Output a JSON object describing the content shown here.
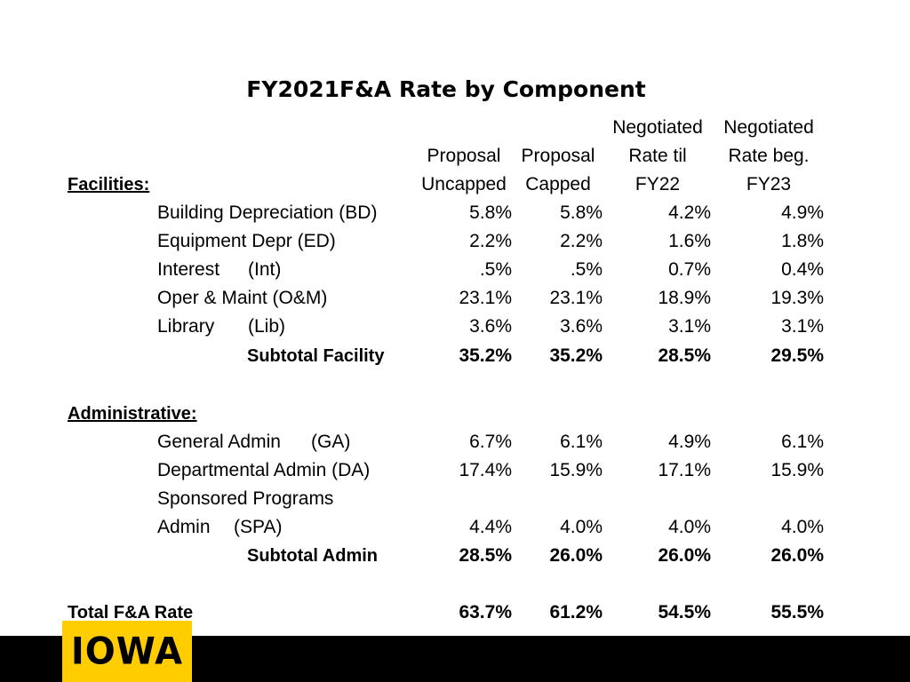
{
  "title": "FY2021F&A Rate by Component",
  "columns": [
    {
      "line1": "",
      "line2": "Proposal",
      "line3": "Uncapped"
    },
    {
      "line1": "",
      "line2": "Proposal",
      "line3": "Capped"
    },
    {
      "line1": "Negotiated",
      "line2": "Rate til",
      "line3": "FY22"
    },
    {
      "line1": "Negotiated",
      "line2": "Rate beg.",
      "line3": "FY23"
    }
  ],
  "facilities": {
    "heading": "Facilities:",
    "rows": [
      {
        "label": "Building Depreciation (BD)",
        "values": [
          "5.8%",
          "5.8%",
          "4.2%",
          "4.9%"
        ]
      },
      {
        "label": "Equipment Depr (ED)",
        "values": [
          "2.2%",
          "2.2%",
          "1.6%",
          "1.8%"
        ]
      },
      {
        "label": "Interest",
        "abbr": "(Int)",
        "values": [
          ".5%",
          ".5%",
          "0.7%",
          "0.4%"
        ]
      },
      {
        "label": "Oper & Maint (O&M)",
        "values": [
          "23.1%",
          "23.1%",
          "18.9%",
          "19.3%"
        ]
      },
      {
        "label": "Library",
        "abbr": "(Lib)",
        "values": [
          "3.6%",
          "3.6%",
          "3.1%",
          "3.1%"
        ]
      }
    ],
    "subtotal": {
      "label": "Subtotal Facility",
      "values": [
        "35.2%",
        "35.2%",
        "28.5%",
        "29.5%"
      ]
    }
  },
  "administrative": {
    "heading": "Administrative:",
    "rows": [
      {
        "label": "General Admin",
        "abbr": "(GA)",
        "values": [
          "6.7%",
          "6.1%",
          "4.9%",
          "6.1%"
        ]
      },
      {
        "label": "Departmental Admin (DA)",
        "values": [
          "17.4%",
          "15.9%",
          "17.1%",
          "15.9%"
        ]
      },
      {
        "label_line1": "Sponsored Programs",
        "label": "Admin",
        "abbr": "(SPA)",
        "values": [
          "4.4%",
          "4.0%",
          "4.0%",
          "4.0%"
        ]
      }
    ],
    "subtotal": {
      "label": "Subtotal Admin",
      "values": [
        "28.5%",
        "26.0%",
        "26.0%",
        "26.0%"
      ]
    }
  },
  "total": {
    "label": "Total F&A Rate",
    "values": [
      "63.7%",
      "61.2%",
      "54.5%",
      "55.5%"
    ]
  },
  "logo": {
    "text": "IOWA",
    "color": "#FFCD00"
  },
  "colors": {
    "footer": "#000000",
    "text": "#000000",
    "background": "#ffffff"
  }
}
